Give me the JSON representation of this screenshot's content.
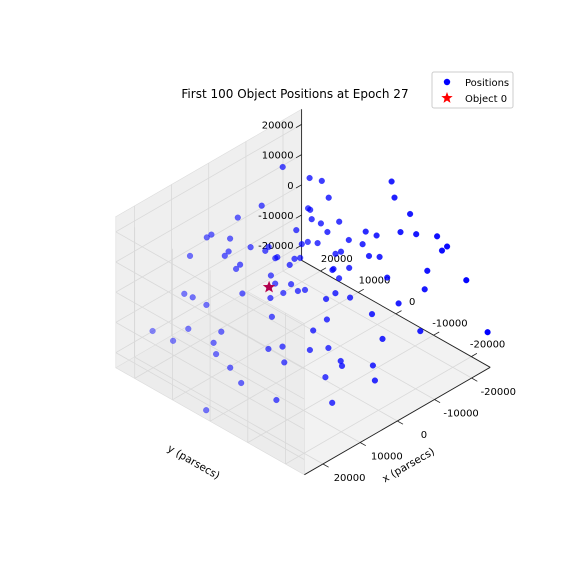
{
  "chart_data": {
    "type": "scatter",
    "projection": "3d",
    "title": "First 100 Object Positions at Epoch 27",
    "xlabel": "x (parsecs)",
    "ylabel": "y (parsecs)",
    "zlabel": "",
    "xlim": [
      -25000,
      25000
    ],
    "ylim": [
      -25000,
      25000
    ],
    "zlim": [
      -25000,
      25000
    ],
    "x_ticks": [
      -20000,
      -10000,
      0,
      10000,
      20000
    ],
    "y_ticks": [
      -20000,
      -10000,
      0,
      10000,
      20000
    ],
    "z_ticks": [
      -20000,
      -10000,
      0,
      10000,
      20000
    ],
    "grid": true,
    "legend": {
      "placement": "top-right",
      "entries": [
        "Positions",
        "Object 0"
      ]
    },
    "colors": {
      "positions": "#0000ff",
      "object0": "#ff0000",
      "pane": "#f2f2f2",
      "grid": "#d9d9d9"
    },
    "series": [
      {
        "name": "Positions",
        "marker": "circle",
        "points": [
          [
            -13500,
            22300,
            -23800
          ],
          [
            -12900,
            10800,
            10400
          ],
          [
            6000,
            -24200,
            14100
          ],
          [
            -6400,
            -1500,
            3800
          ],
          [
            -24600,
            -24700,
            -13300
          ],
          [
            -14000,
            8800,
            20600
          ],
          [
            -6000,
            3600,
            17300
          ],
          [
            22900,
            17300,
            -8900
          ],
          [
            -17400,
            -19700,
            15300
          ],
          [
            11200,
            12000,
            -21100
          ],
          [
            -2100,
            5600,
            3500
          ],
          [
            -19300,
            -11000,
            13200
          ],
          [
            11400,
            18000,
            -6400
          ],
          [
            -9000,
            -1200,
            7800
          ],
          [
            -12500,
            -8000,
            8400
          ],
          [
            9000,
            12800,
            -15800
          ],
          [
            -17800,
            17000,
            -24000
          ],
          [
            -12100,
            3300,
            1700
          ],
          [
            -5800,
            -10900,
            23600
          ],
          [
            8700,
            -18900,
            -4900
          ],
          [
            -4800,
            12100,
            -9200
          ],
          [
            -20000,
            10100,
            1900
          ],
          [
            -3300,
            -9000,
            12000
          ],
          [
            -4900,
            -17500,
            13700
          ],
          [
            -1300,
            -6800,
            11500
          ],
          [
            -3500,
            6600,
            -4600
          ],
          [
            -6700,
            -12900,
            23100
          ],
          [
            -11600,
            13200,
            2900
          ],
          [
            15100,
            9400,
            23100
          ],
          [
            13800,
            2800,
            -22300
          ],
          [
            12400,
            7500,
            16900
          ],
          [
            -22600,
            -2000,
            16600
          ],
          [
            -5400,
            19200,
            -2600
          ],
          [
            -1500,
            -19600,
            -2700
          ],
          [
            -10000,
            8100,
            24900
          ],
          [
            10600,
            7300,
            10000
          ],
          [
            -1800,
            2100,
            13100
          ],
          [
            -20200,
            -8500,
            17500
          ],
          [
            13300,
            6200,
            -20000
          ],
          [
            -20300,
            7500,
            -21600
          ],
          [
            5400,
            20300,
            -14800
          ],
          [
            -23300,
            -12600,
            10800
          ],
          [
            -5100,
            -13500,
            -18400
          ],
          [
            12100,
            18500,
            -16700
          ],
          [
            -5600,
            22800,
            4500
          ],
          [
            -24700,
            12200,
            -9000
          ],
          [
            -16300,
            16800,
            -12200
          ],
          [
            -800,
            -16700,
            23200
          ],
          [
            14700,
            -16300,
            2800
          ],
          [
            8800,
            22800,
            -10500
          ],
          [
            -21200,
            -22400,
            4700
          ],
          [
            -7800,
            14500,
            -4300
          ],
          [
            9800,
            -15600,
            -10200
          ],
          [
            5900,
            -14400,
            14000
          ],
          [
            -2500,
            -1400,
            15400
          ],
          [
            -1900,
            21200,
            1300
          ],
          [
            8500,
            -14500,
            14000
          ],
          [
            -2300,
            10500,
            -17300
          ],
          [
            21300,
            -23700,
            19200
          ],
          [
            -9900,
            -16100,
            24200
          ],
          [
            -2100,
            -4400,
            21500
          ],
          [
            -3100,
            4400,
            -5000
          ],
          [
            22200,
            8100,
            22000
          ],
          [
            4600,
            -23600,
            -9300
          ],
          [
            17300,
            17400,
            -16200
          ],
          [
            -4600,
            -20800,
            7700
          ],
          [
            -7500,
            12600,
            -14600
          ],
          [
            -2400,
            9700,
            2600
          ],
          [
            17900,
            -12200,
            3300
          ],
          [
            5900,
            19700,
            8300
          ],
          [
            -3700,
            14600,
            15600
          ],
          [
            14600,
            2300,
            17800
          ],
          [
            -7400,
            15800,
            -11000
          ],
          [
            9800,
            -4700,
            -13000
          ],
          [
            -10000,
            12100,
            -4700
          ],
          [
            -14000,
            -2000,
            7300
          ],
          [
            17200,
            -9900,
            -16500
          ],
          [
            -21800,
            -2000,
            22500
          ],
          [
            -20800,
            -17700,
            12800
          ],
          [
            -22900,
            21200,
            -3600
          ],
          [
            -13100,
            18300,
            19100
          ],
          [
            7800,
            1400,
            19500
          ],
          [
            13100,
            -22900,
            2700
          ],
          [
            9500,
            6700,
            1500
          ],
          [
            11000,
            -2200,
            7400
          ],
          [
            -16800,
            -16400,
            6700
          ],
          [
            15900,
            -23400,
            -8800
          ],
          [
            17600,
            3400,
            22100
          ],
          [
            15000,
            -5600,
            -4200
          ],
          [
            23000,
            3000,
            -24900
          ],
          [
            6500,
            3600,
            15700
          ],
          [
            8600,
            -14800,
            7500
          ],
          [
            -3600,
            -1200,
            21000
          ],
          [
            -12100,
            5100,
            19000
          ],
          [
            -22000,
            20400,
            -13500
          ],
          [
            -4700,
            -2100,
            -20400
          ],
          [
            -15700,
            5900,
            -10800
          ],
          [
            -22600,
            -10000,
            -8100
          ],
          [
            14200,
            9700,
            -13600
          ],
          [
            -21200,
            -10200,
            -20800
          ]
        ]
      },
      {
        "name": "Object 0",
        "marker": "star",
        "points": [
          [
            -13500,
            22300,
            -23800
          ]
        ]
      }
    ]
  }
}
